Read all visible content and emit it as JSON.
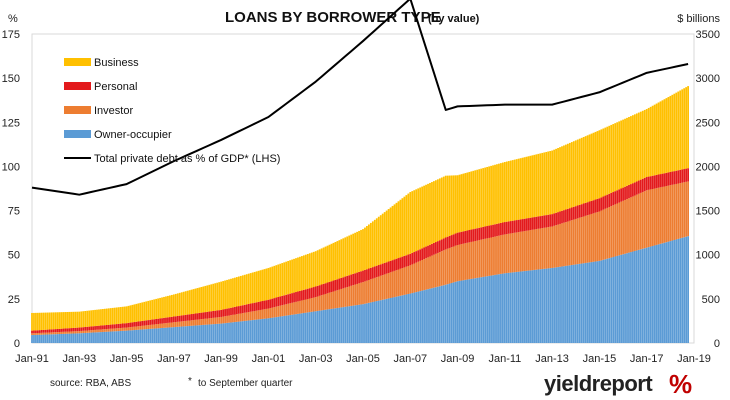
{
  "chart_data": {
    "type": "bar",
    "title": "LOANS BY BORROWER TYPE",
    "subtitle": "(by value)",
    "ylabel_left": "%",
    "ylabel_right": "$ billions",
    "ylim_left": [
      0,
      175
    ],
    "ylim_right": [
      0,
      3500
    ],
    "yticks_left": [
      "0",
      "25",
      "50",
      "75",
      "100",
      "125",
      "150",
      "175"
    ],
    "yticks_right": [
      "0",
      "500",
      "1000",
      "1500",
      "2000",
      "2500",
      "3000",
      "3500"
    ],
    "xticks": [
      "Jan-91",
      "Jan-93",
      "Jan-95",
      "Jan-97",
      "Jan-99",
      "Jan-01",
      "Jan-03",
      "Jan-05",
      "Jan-07",
      "Jan-09",
      "Jan-11",
      "Jan-13",
      "Jan-15",
      "Jan-17",
      "Jan-19"
    ],
    "xrange": [
      "Jan-91",
      "Jan-19"
    ],
    "stacked": true,
    "bar_series_axis": "right",
    "line_series_axis": "left",
    "legend_position": "top-left",
    "x_years": [
      1991.0,
      1993.0,
      1995.0,
      1997.0,
      1999.0,
      2001.0,
      2003.0,
      2005.0,
      2007.0,
      2008.5,
      2009.0,
      2011.0,
      2013.0,
      2015.0,
      2017.0,
      2018.75
    ],
    "series": [
      {
        "name": "Owner-occupier",
        "color": "#5B9BD5",
        "axis": "right",
        "values": [
          90,
          110,
          140,
          180,
          220,
          280,
          360,
          440,
          560,
          660,
          700,
          790,
          850,
          930,
          1080,
          1210
        ]
      },
      {
        "name": "Investor",
        "color": "#ED7D31",
        "axis": "right",
        "values": [
          20,
          25,
          35,
          55,
          75,
          110,
          160,
          250,
          320,
          400,
          410,
          440,
          470,
          560,
          650,
          620
        ]
      },
      {
        "name": "Personal",
        "color": "#E31A1C",
        "axis": "right",
        "values": [
          30,
          40,
          50,
          65,
          80,
          100,
          120,
          130,
          130,
          135,
          140,
          140,
          140,
          150,
          150,
          150
        ]
      },
      {
        "name": "Business",
        "color": "#FFC000",
        "axis": "right",
        "values": [
          200,
          180,
          190,
          250,
          320,
          360,
          400,
          470,
          700,
          700,
          650,
          680,
          720,
          770,
          770,
          930
        ]
      },
      {
        "name": "Total private debt as % of GDP* (LHS)",
        "color": "#000000",
        "axis": "left",
        "kind": "line",
        "values": [
          88,
          84,
          90,
          103,
          115,
          128,
          148,
          171,
          195,
          132,
          134,
          135,
          135,
          142,
          153,
          158
        ]
      }
    ],
    "legend": [
      {
        "name": "Business",
        "color": "#FFC000",
        "marker": "bar"
      },
      {
        "name": "Personal",
        "color": "#E31A1C",
        "marker": "bar"
      },
      {
        "name": "Investor",
        "color": "#ED7D31",
        "marker": "bar"
      },
      {
        "name": "Owner-occupier",
        "color": "#5B9BD5",
        "marker": "bar"
      },
      {
        "name": "Total private debt as % of GDP* (LHS)",
        "color": "#000000",
        "marker": "line"
      }
    ]
  },
  "footer": {
    "source": "source: RBA, ABS",
    "note_marker": "*",
    "note": "to September quarter"
  },
  "logo": {
    "text": "yieldreport",
    "symbol": "%",
    "symbol_color": "#C00000"
  }
}
